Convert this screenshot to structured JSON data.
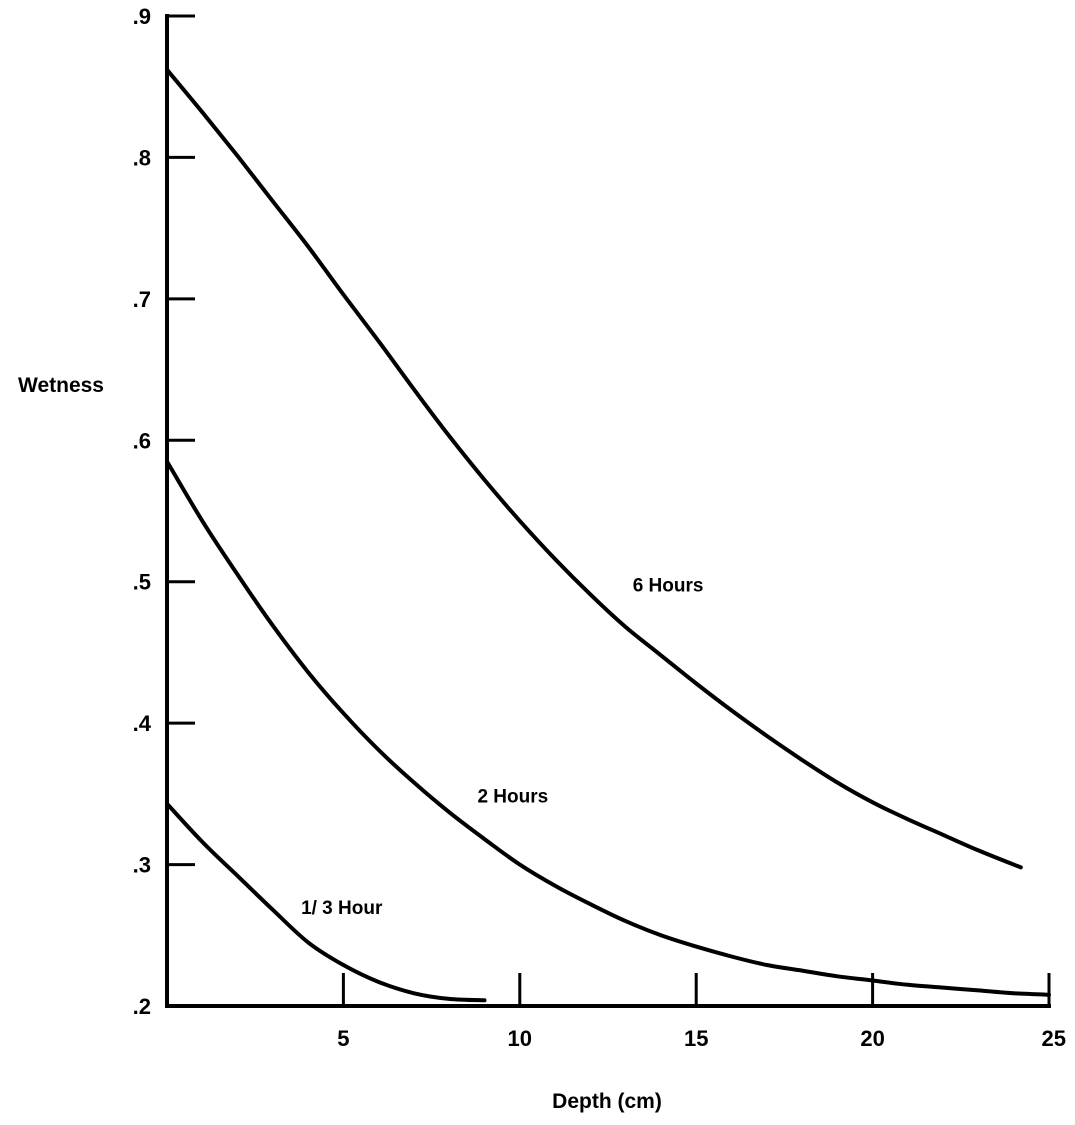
{
  "chart_data": {
    "type": "line",
    "xlabel": "Depth (cm)",
    "ylabel": "Wetness",
    "xlim": [
      0,
      25
    ],
    "ylim": [
      0.2,
      0.9
    ],
    "grid": false,
    "x_ticks": [
      5,
      10,
      15,
      20,
      25
    ],
    "x_tick_labels": [
      "5",
      "10",
      "15",
      "20",
      "25"
    ],
    "y_ticks": [
      0.2,
      0.3,
      0.4,
      0.5,
      0.6,
      0.7,
      0.8,
      0.9
    ],
    "y_tick_labels": [
      ".2",
      ".3",
      ".4",
      ".5",
      ".6",
      ".7",
      ".8",
      ".9"
    ],
    "series": [
      {
        "name": "6 Hours",
        "x": [
          0,
          1,
          2,
          3,
          4,
          5,
          6,
          7,
          8,
          9,
          10,
          11,
          12,
          13,
          14,
          15,
          16,
          17,
          18,
          19,
          20,
          21,
          22,
          23,
          24.2
        ],
        "y": [
          0.862,
          0.832,
          0.801,
          0.769,
          0.737,
          0.703,
          0.67,
          0.636,
          0.603,
          0.572,
          0.543,
          0.516,
          0.491,
          0.468,
          0.448,
          0.428,
          0.409,
          0.391,
          0.374,
          0.358,
          0.344,
          0.332,
          0.321,
          0.31,
          0.298
        ]
      },
      {
        "name": "2 Hours",
        "x": [
          0,
          1,
          2,
          3,
          4,
          5,
          6,
          7,
          8,
          9,
          10,
          11,
          12,
          13,
          14,
          15,
          16,
          17,
          18,
          19,
          20,
          21,
          22,
          23,
          24,
          25
        ],
        "y": [
          0.585,
          0.543,
          0.505,
          0.469,
          0.436,
          0.407,
          0.381,
          0.358,
          0.337,
          0.318,
          0.3,
          0.285,
          0.272,
          0.26,
          0.25,
          0.242,
          0.235,
          0.229,
          0.225,
          0.221,
          0.218,
          0.215,
          0.213,
          0.211,
          0.209,
          0.208
        ]
      },
      {
        "name": "1/ 3 Hour",
        "x": [
          0,
          1,
          2,
          3,
          4,
          5,
          6,
          7,
          8,
          9
        ],
        "y": [
          0.343,
          0.316,
          0.292,
          0.268,
          0.245,
          0.229,
          0.217,
          0.209,
          0.205,
          0.204
        ]
      }
    ],
    "annotations": [
      {
        "text": "6 Hours",
        "x": 13.2,
        "y": 0.493
      },
      {
        "text": "2 Hours",
        "x": 8.8,
        "y": 0.344
      },
      {
        "text": "1/ 3 Hour",
        "x": 3.8,
        "y": 0.265
      }
    ]
  }
}
